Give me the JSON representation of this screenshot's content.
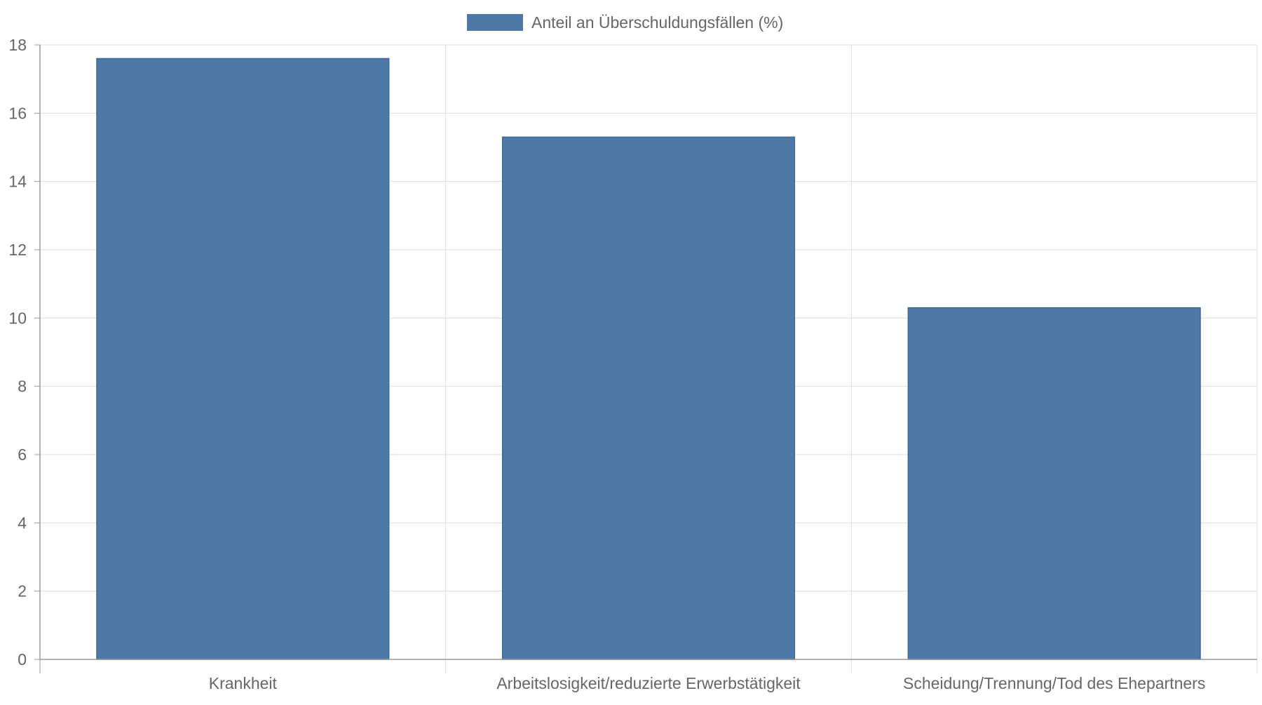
{
  "chart_data": {
    "type": "bar",
    "title": "",
    "xlabel": "",
    "ylabel": "",
    "categories": [
      "Krankheit",
      "Arbeitslosigkeit/reduzierte Erwerbstätigkeit",
      "Scheidung/Trennung/Tod des Ehepartners"
    ],
    "series": [
      {
        "name": "Anteil an Überschuldungsfällen (%)",
        "values": [
          17.6,
          15.3,
          10.3
        ]
      }
    ],
    "ylim": [
      0,
      18
    ],
    "yticks": [
      "0",
      "2",
      "4",
      "6",
      "8",
      "10",
      "12",
      "14",
      "16",
      "18"
    ],
    "grid": true,
    "legend_position": "top-center",
    "colors": {
      "bar_fill": "#4e79a7",
      "bar_stroke": "#3e6a96",
      "grid": "#dddddd",
      "axis": "#999999",
      "text": "#666666"
    }
  }
}
